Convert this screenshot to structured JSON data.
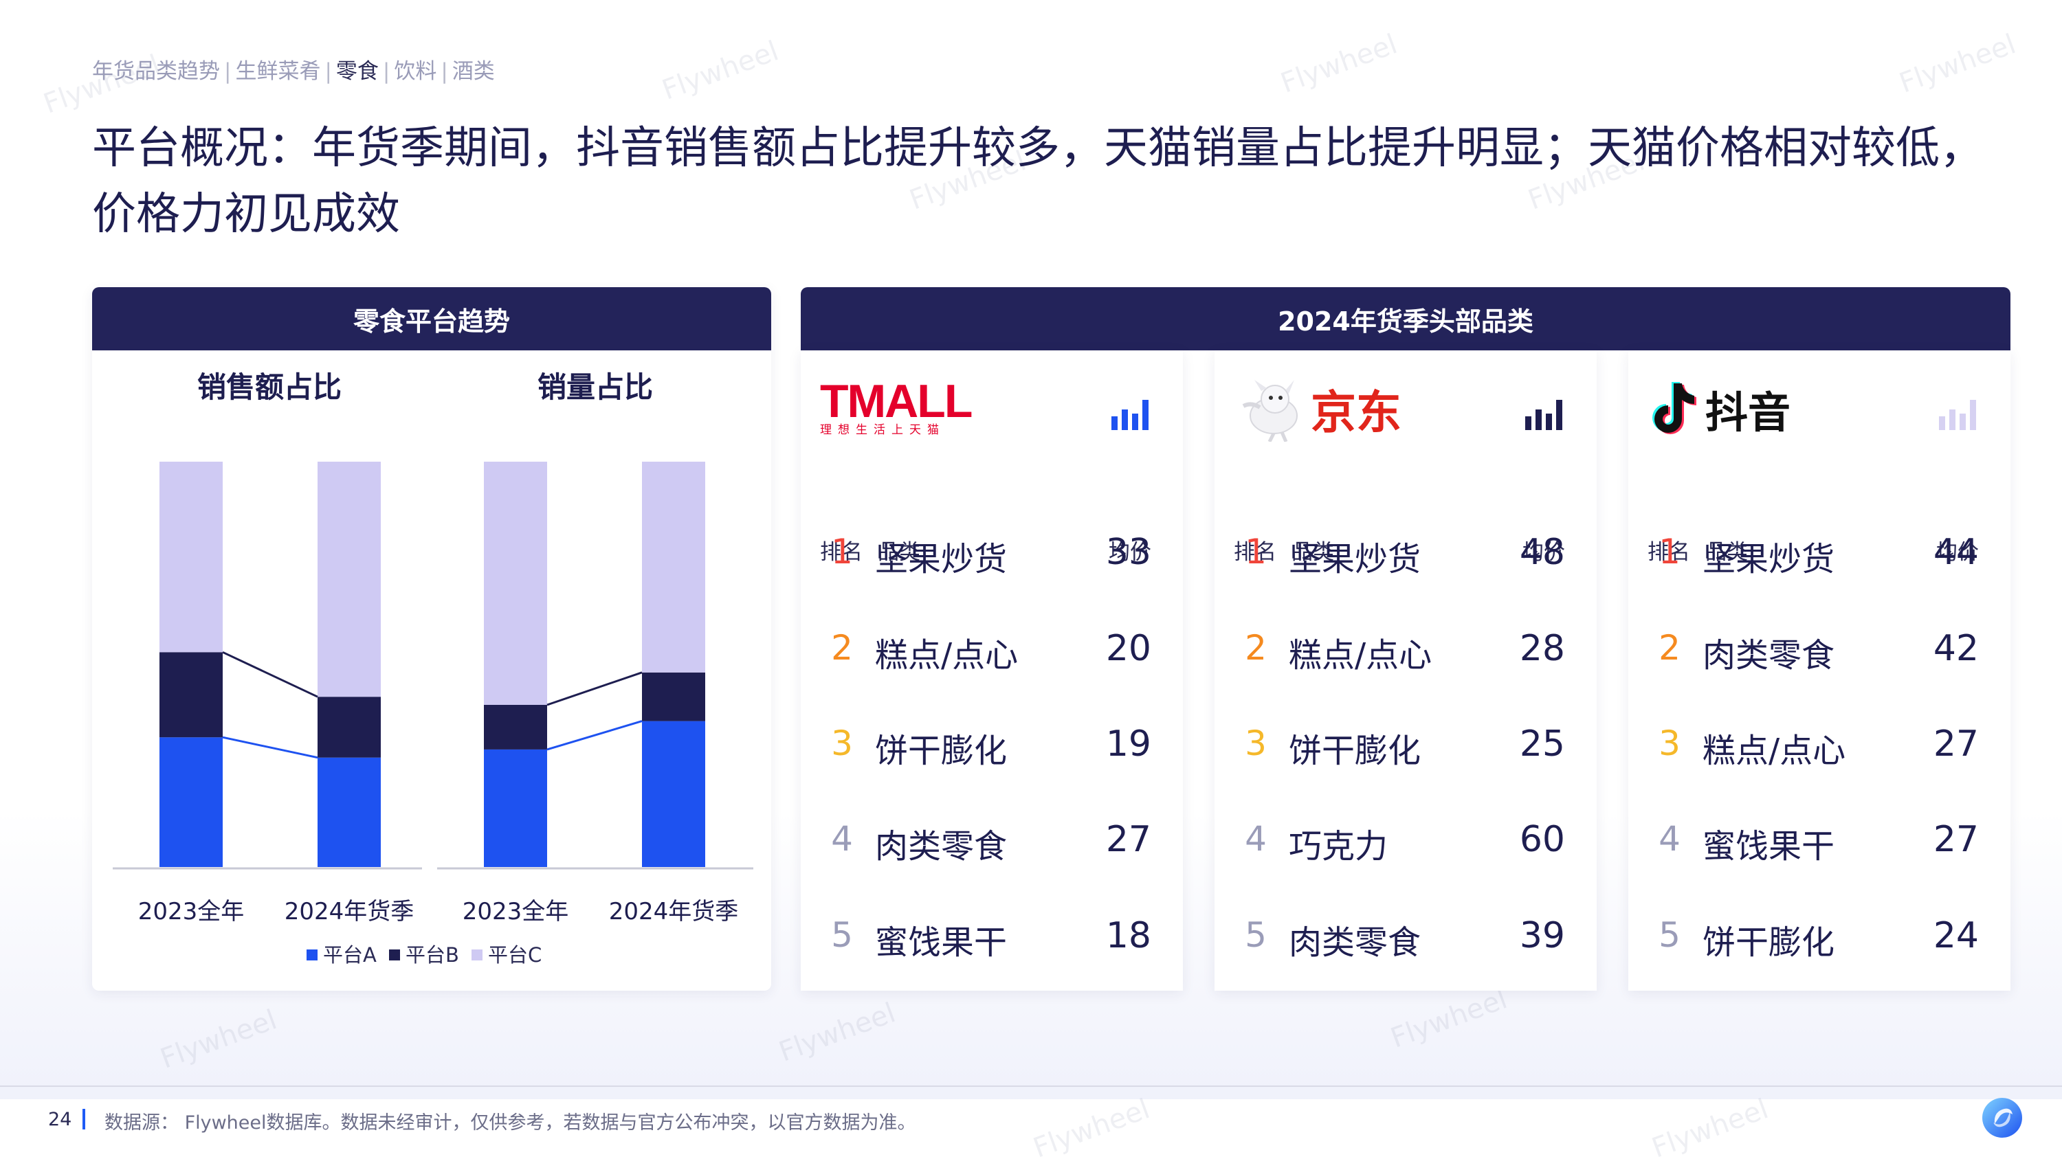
{
  "breadcrumb": {
    "items": [
      "年货品类趋势",
      "生鲜菜肴",
      "零食",
      "饮料",
      "酒类"
    ],
    "active_index": 2
  },
  "page_title": "平台概况：年货季期间，抖音销售额占比提升较多，天猫销量占比提升明显；天猫价格相对较低，价格力初见成效",
  "left_panel": {
    "header": "零食平台趋势"
  },
  "right_panel": {
    "header": "2024年货季头部品类"
  },
  "colors": {
    "platform_a": "#1e52f0",
    "platform_b": "#1e1e50",
    "platform_c": "#cfcaf3",
    "header_bg": "#23235a",
    "rank_1": "#f0453a",
    "rank_2": "#f58a1f",
    "rank_3": "#f5b82a",
    "rank_other": "#9a9cb8"
  },
  "chart_data": [
    {
      "type": "bar",
      "stacked": true,
      "normalized": true,
      "title": "销售额占比",
      "categories": [
        "2023全年",
        "2024年货季"
      ],
      "series": [
        {
          "name": "平台A",
          "values": [
            0.32,
            0.27
          ]
        },
        {
          "name": "平台B",
          "values": [
            0.21,
            0.15
          ]
        },
        {
          "name": "平台C",
          "values": [
            0.47,
            0.58
          ]
        }
      ],
      "ylim": [
        0,
        1
      ],
      "grid": false,
      "connector_lines": true
    },
    {
      "type": "bar",
      "stacked": true,
      "normalized": true,
      "title": "销量占比",
      "categories": [
        "2023全年",
        "2024年货季"
      ],
      "series": [
        {
          "name": "平台A",
          "values": [
            0.29,
            0.36
          ]
        },
        {
          "name": "平台B",
          "values": [
            0.11,
            0.12
          ]
        },
        {
          "name": "平台C",
          "values": [
            0.6,
            0.52
          ]
        }
      ],
      "ylim": [
        0,
        1
      ],
      "grid": false,
      "connector_lines": true
    }
  ],
  "legend": {
    "items": [
      "平台A",
      "平台B",
      "平台C"
    ],
    "placement": "bottom"
  },
  "platforms": [
    {
      "name": "TMALL",
      "logo_text": "TMALL",
      "logo_subtext": "理想生活上天猫",
      "col_rank": "排名",
      "col_category": "品类",
      "col_price": "均价",
      "signal_level": "full",
      "rows": [
        {
          "rank": "1",
          "category": "坚果炒货",
          "price": "33"
        },
        {
          "rank": "2",
          "category": "糕点/点心",
          "price": "20"
        },
        {
          "rank": "3",
          "category": "饼干膨化",
          "price": "19"
        },
        {
          "rank": "4",
          "category": "肉类零食",
          "price": "27"
        },
        {
          "rank": "5",
          "category": "蜜饯果干",
          "price": "18"
        }
      ]
    },
    {
      "name": "京东",
      "logo_text": "京东",
      "col_rank": "排名",
      "col_category": "品类",
      "col_price": "均价",
      "signal_level": "full",
      "rows": [
        {
          "rank": "1",
          "category": "坚果炒货",
          "price": "48"
        },
        {
          "rank": "2",
          "category": "糕点/点心",
          "price": "28"
        },
        {
          "rank": "3",
          "category": "饼干膨化",
          "price": "25"
        },
        {
          "rank": "4",
          "category": "巧克力",
          "price": "60"
        },
        {
          "rank": "5",
          "category": "肉类零食",
          "price": "39"
        }
      ]
    },
    {
      "name": "抖音",
      "logo_text": "抖音",
      "col_rank": "排名",
      "col_category": "品类",
      "col_price": "均价",
      "signal_level": "faded",
      "rows": [
        {
          "rank": "1",
          "category": "坚果炒货",
          "price": "44"
        },
        {
          "rank": "2",
          "category": "肉类零食",
          "price": "42"
        },
        {
          "rank": "3",
          "category": "糕点/点心",
          "price": "27"
        },
        {
          "rank": "4",
          "category": "蜜饯果干",
          "price": "27"
        },
        {
          "rank": "5",
          "category": "饼干膨化",
          "price": "24"
        }
      ]
    }
  ],
  "footer": {
    "page_number": "24",
    "source": "数据源： Flywheel数据库。数据未经审计，仅供参考，若数据与官方公布冲突，以官方数据为准。"
  },
  "watermark": "Flywheel"
}
